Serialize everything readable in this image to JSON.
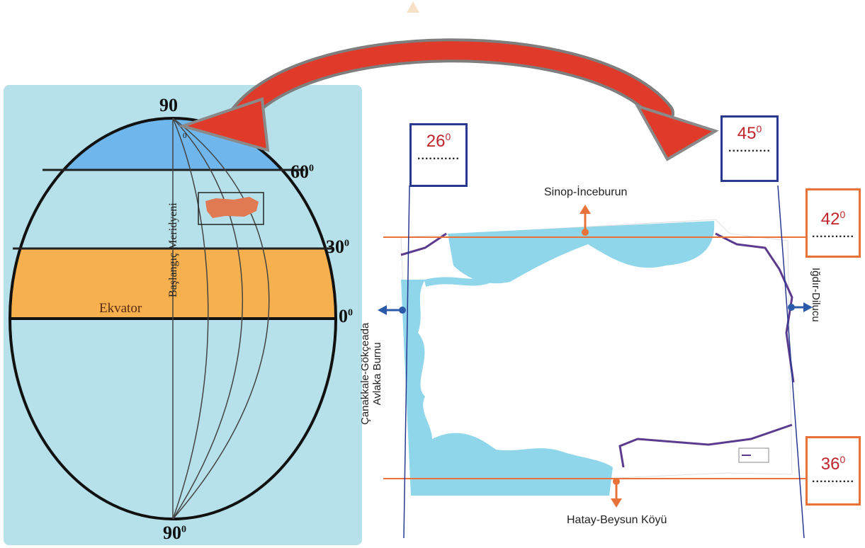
{
  "globe": {
    "labels": {
      "n90": "90",
      "s90": "90",
      "s90_sup": "0",
      "lat60": "60",
      "lat60_sup": "0",
      "lat30": "30",
      "lat30_sup": "0",
      "lat0": "0",
      "lat0_sup": "0",
      "meridian_zero": "0",
      "equator": "Ekvator",
      "prime_meridian": "Başlangıç Meridyeni"
    },
    "colors": {
      "panel": "#b6e0ea",
      "polar_zone": "#6fb6ec",
      "tropical_zone": "#f7b04e",
      "turkey": "#e07a53"
    }
  },
  "arrow": {
    "icon": "double-curved-arrow-icon",
    "color": "#e03a2a"
  },
  "map": {
    "points": {
      "north": "Sinop-İnceburun",
      "south": "Hatay-Beysun Köyü",
      "west_line1": "Çanakkale-Gökçeada",
      "west_line2": "Avlaka Burnu",
      "east": "Iğdır-Dilucu"
    },
    "boxes": {
      "west": {
        "value": "26",
        "sup": "0",
        "blank": "..........."
      },
      "east": {
        "value": "45",
        "sup": "0",
        "blank": "..........."
      },
      "north": {
        "value": "42",
        "sup": "0",
        "blank": "..........."
      },
      "south": {
        "value": "36",
        "sup": "0",
        "blank": "..........."
      }
    },
    "colors": {
      "sea": "#8fd6ea",
      "border": "#5b3b8e",
      "lat_line": "#e8723a",
      "lon_line": "#2a3990",
      "arrow_blue": "#2b5aa8",
      "arrow_orange": "#e8723a"
    }
  }
}
